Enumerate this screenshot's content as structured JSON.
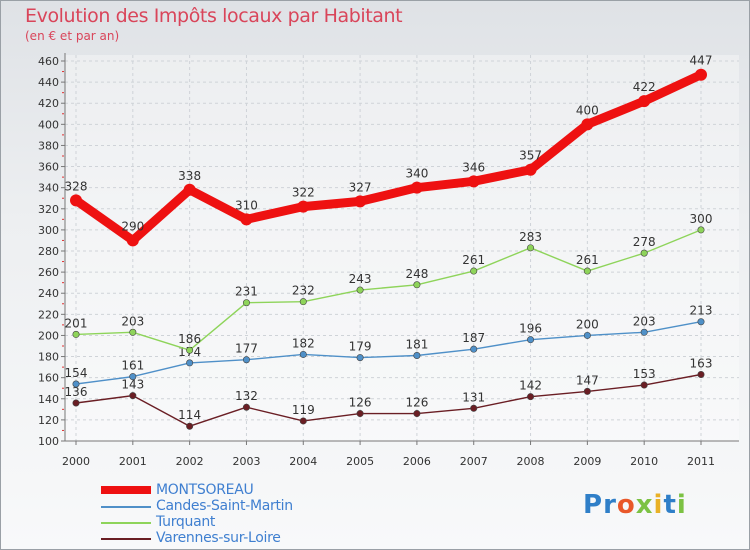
{
  "title": "Evolution des Impôts locaux par Habitant",
  "subtitle": "(en € et par an)",
  "logo": {
    "text": "Proxiti",
    "letter_colors": [
      "#2f7fc8",
      "#2f7fc8",
      "#e9582a",
      "#7cc243",
      "#e9b126",
      "#2f7fc8",
      "#7cc243"
    ]
  },
  "chart_data": {
    "type": "line",
    "title": "Evolution des Impôts locaux par Habitant",
    "ylabel": "(en € et par an)",
    "xlabel": "",
    "categories": [
      "2000",
      "2001",
      "2002",
      "2003",
      "2004",
      "2005",
      "2006",
      "2007",
      "2008",
      "2009",
      "2010",
      "2011"
    ],
    "ylim": [
      100,
      460
    ],
    "yticks": [
      100,
      120,
      140,
      160,
      180,
      200,
      220,
      240,
      260,
      280,
      300,
      320,
      340,
      360,
      380,
      400,
      420,
      440,
      460
    ],
    "grid": true,
    "legend": "bottom-left",
    "series": [
      {
        "name": "MONTSOREAU",
        "color": "#ee1111",
        "values": [
          328,
          290,
          338,
          310,
          322,
          327,
          340,
          346,
          357,
          400,
          422,
          447
        ]
      },
      {
        "name": "Candes-Saint-Martin",
        "color": "#4f90c8",
        "values": [
          154,
          161,
          174,
          177,
          182,
          179,
          181,
          187,
          196,
          200,
          203,
          213
        ]
      },
      {
        "name": "Turquant",
        "color": "#8ed45a",
        "values": [
          201,
          203,
          186,
          231,
          232,
          243,
          248,
          261,
          283,
          261,
          278,
          300
        ]
      },
      {
        "name": "Varennes-sur-Loire",
        "color": "#6a1e24",
        "values": [
          136,
          143,
          114,
          132,
          119,
          126,
          126,
          131,
          142,
          147,
          153,
          163
        ]
      }
    ]
  }
}
